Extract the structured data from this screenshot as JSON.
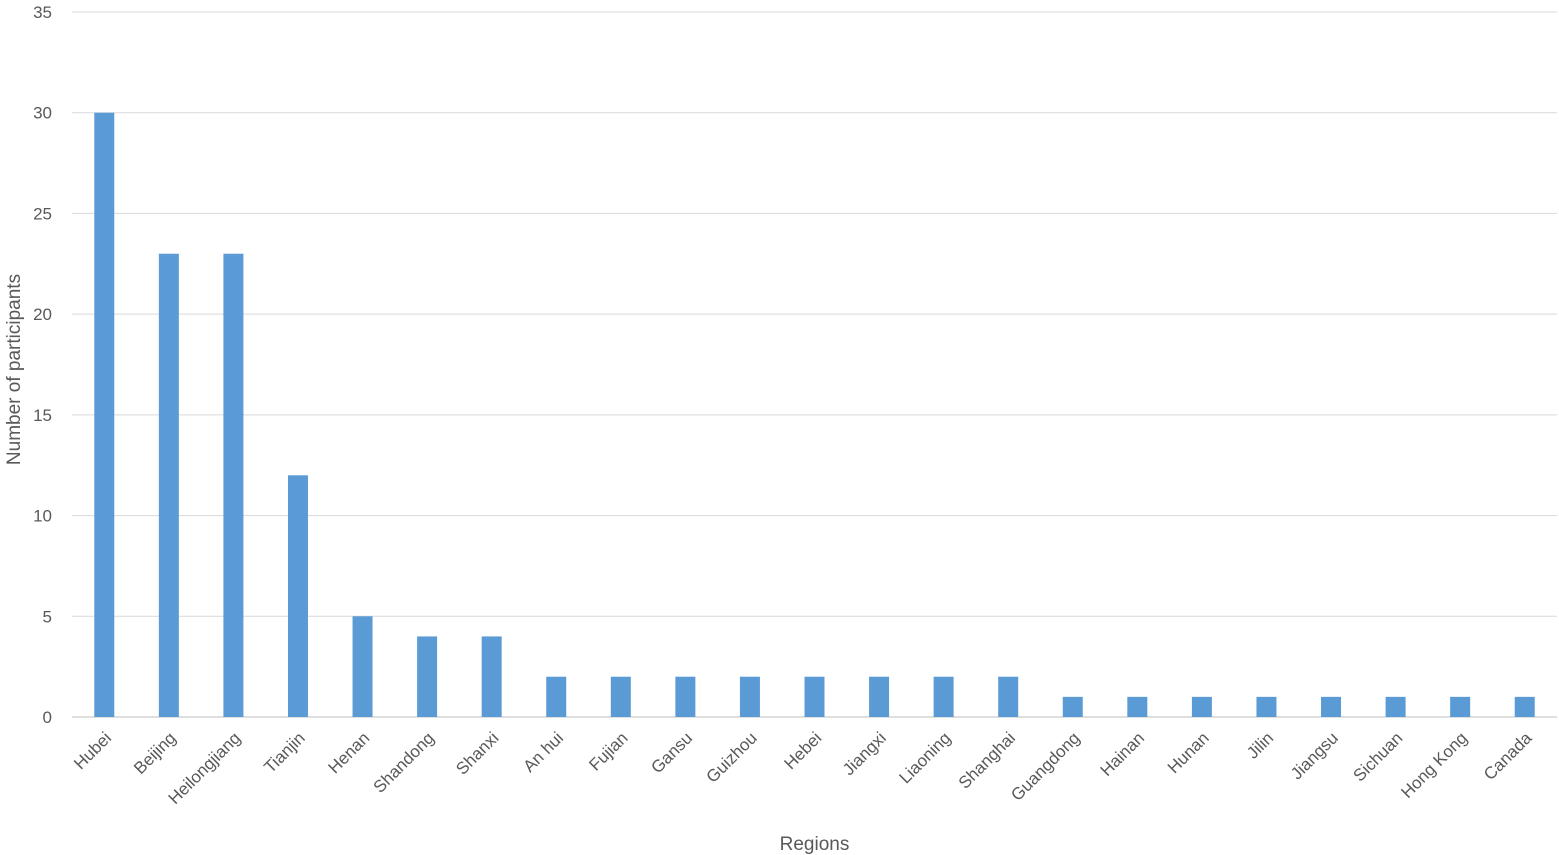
{
  "chart_data": {
    "type": "bar",
    "title": "",
    "xlabel": "Regions",
    "ylabel": "Number of participants",
    "ylim": [
      0,
      35
    ],
    "yticks": [
      0,
      5,
      10,
      15,
      20,
      25,
      30,
      35
    ],
    "grid": true,
    "legend": "none",
    "bar_color": "#5b9bd5",
    "categories": [
      "Hubei",
      "Beijing",
      "Heilongjiang",
      "Tianjin",
      "Henan",
      "Shandong",
      "Shanxi",
      "An hui",
      "Fujian",
      "Gansu",
      "Guizhou",
      "Hebei",
      "Jiangxi",
      "Liaoning",
      "Shanghai",
      "Guangdong",
      "Hainan",
      "Hunan",
      "Jilin",
      "Jiangsu",
      "Sichuan",
      "Hong Kong",
      "Canada"
    ],
    "values": [
      30,
      23,
      23,
      12,
      5,
      4,
      4,
      2,
      2,
      2,
      2,
      2,
      2,
      2,
      2,
      1,
      1,
      1,
      1,
      1,
      1,
      1,
      1
    ]
  }
}
